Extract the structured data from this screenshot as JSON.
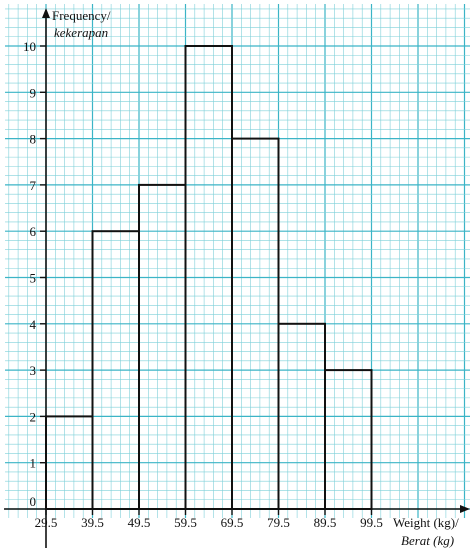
{
  "chart_data": {
    "type": "bar",
    "bins": [
      {
        "from": 29.5,
        "to": 39.5,
        "value": 2
      },
      {
        "from": 39.5,
        "to": 49.5,
        "value": 6
      },
      {
        "from": 49.5,
        "to": 59.5,
        "value": 7
      },
      {
        "from": 59.5,
        "to": 69.5,
        "value": 10
      },
      {
        "from": 69.5,
        "to": 79.5,
        "value": 8
      },
      {
        "from": 79.5,
        "to": 89.5,
        "value": 4
      },
      {
        "from": 89.5,
        "to": 99.5,
        "value": 3
      }
    ],
    "x_ticks": [
      "29.5",
      "39.5",
      "49.5",
      "59.5",
      "69.5",
      "79.5",
      "89.5",
      "99.5"
    ],
    "y_ticks": [
      "0",
      "1",
      "2",
      "3",
      "4",
      "5",
      "6",
      "7",
      "8",
      "9",
      "10"
    ],
    "xlim": [
      29.5,
      99.5
    ],
    "ylim": [
      0,
      10
    ],
    "ylabel_line1": "Frequency/",
    "ylabel_line2": "kekerapan",
    "xlabel_line1": "Weight (kg)/",
    "xlabel_line2": "Berat (kg)",
    "grid": true,
    "colors": {
      "grid_minor": "#7fd0d9",
      "grid_major": "#3bb4c6",
      "bar_stroke": "#111111",
      "axis": "#111111",
      "background": "#ffffff"
    }
  }
}
